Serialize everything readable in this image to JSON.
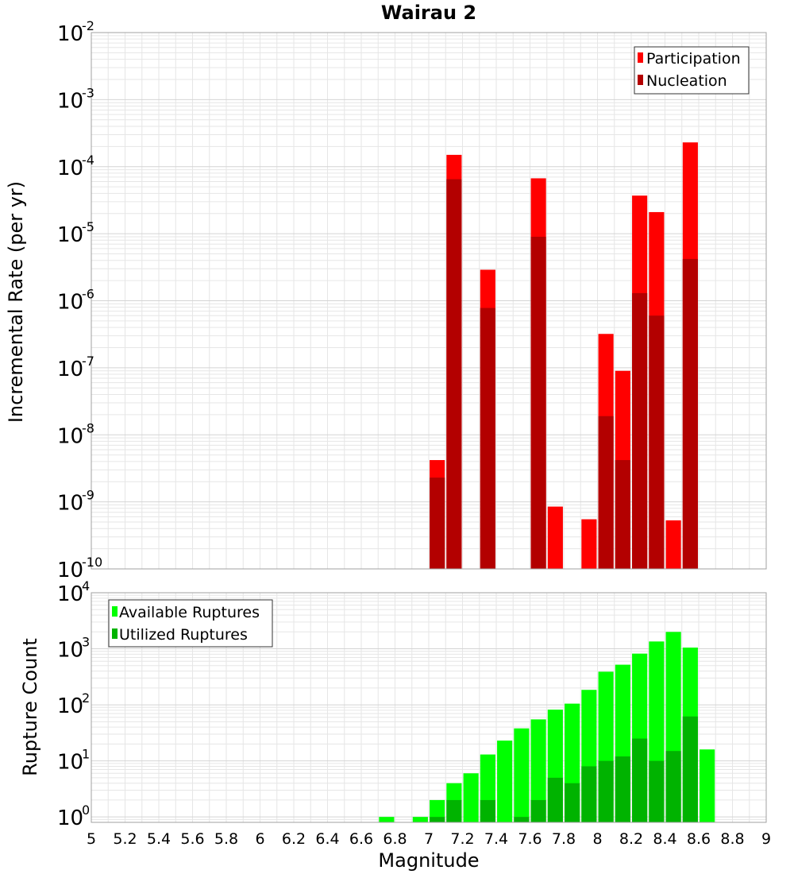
{
  "chart_data": [
    {
      "type": "bar",
      "title": "Wairau 2",
      "xlabel": "Magnitude",
      "ylabel": "Incremental Rate (per yr)",
      "xlim": [
        5,
        9
      ],
      "ylim": [
        1e-10,
        0.01
      ],
      "yscale": "log",
      "grid": true,
      "legend_position": "top-right",
      "bar_width": 0.09,
      "series": [
        {
          "name": "Participation",
          "color": "#ff0000",
          "x": [
            7.05,
            7.15,
            7.35,
            7.65,
            7.75,
            7.95,
            8.05,
            8.15,
            8.25,
            8.35,
            8.45,
            8.55
          ],
          "values": [
            4.2e-09,
            0.00015,
            2.9e-06,
            6.7e-05,
            8.5e-10,
            5.5e-10,
            3.2e-07,
            9e-08,
            3.7e-05,
            2.1e-05,
            5.3e-10,
            0.00023
          ]
        },
        {
          "name": "Nucleation",
          "color": "#b30000",
          "x": [
            7.05,
            7.15,
            7.35,
            7.65,
            8.05,
            8.15,
            8.25,
            8.35,
            8.55
          ],
          "values": [
            2.3e-09,
            6.5e-05,
            7.8e-07,
            9e-06,
            1.9e-08,
            4.2e-09,
            1.3e-06,
            6e-07,
            4.2e-06
          ]
        }
      ]
    },
    {
      "type": "bar",
      "xlabel": "Magnitude",
      "ylabel": "Rupture Count",
      "xlim": [
        5,
        9
      ],
      "ylim": [
        0.8,
        10000.0
      ],
      "yscale": "log",
      "grid": true,
      "legend_position": "top-left",
      "bar_width": 0.09,
      "series": [
        {
          "name": "Available Ruptures",
          "color": "#00ff00",
          "x": [
            6.75,
            6.95,
            7.05,
            7.15,
            7.25,
            7.35,
            7.45,
            7.55,
            7.65,
            7.75,
            7.85,
            7.95,
            8.05,
            8.15,
            8.25,
            8.35,
            8.45,
            8.55,
            8.65
          ],
          "values": [
            1,
            1,
            2,
            4,
            6,
            13,
            23,
            38,
            55,
            82,
            105,
            185,
            390,
            520,
            820,
            1350,
            2000,
            1050,
            16
          ]
        },
        {
          "name": "Utilized Ruptures",
          "color": "#00b300",
          "x": [
            7.05,
            7.15,
            7.35,
            7.55,
            7.65,
            7.75,
            7.85,
            7.95,
            8.05,
            8.15,
            8.25,
            8.35,
            8.45,
            8.55
          ],
          "values": [
            1,
            2,
            2,
            1,
            2,
            5,
            4,
            8,
            10,
            12,
            25,
            10,
            15,
            62
          ]
        }
      ]
    }
  ],
  "x_ticks": [
    "5",
    "5.2",
    "5.4",
    "5.6",
    "5.8",
    "6",
    "6.2",
    "6.4",
    "6.6",
    "6.8",
    "7",
    "7.2",
    "7.4",
    "7.6",
    "7.8",
    "8",
    "8.2",
    "8.4",
    "8.6",
    "8.8",
    "9"
  ],
  "top_y_ticks": [
    {
      "base": "10",
      "exp": "-2"
    },
    {
      "base": "10",
      "exp": "-3"
    },
    {
      "base": "10",
      "exp": "-4"
    },
    {
      "base": "10",
      "exp": "-5"
    },
    {
      "base": "10",
      "exp": "-6"
    },
    {
      "base": "10",
      "exp": "-7"
    },
    {
      "base": "10",
      "exp": "-8"
    },
    {
      "base": "10",
      "exp": "-9"
    },
    {
      "base": "10",
      "exp": "-10"
    }
  ],
  "bottom_y_ticks": [
    {
      "base": "10",
      "exp": "4"
    },
    {
      "base": "10",
      "exp": "3"
    },
    {
      "base": "10",
      "exp": "2"
    },
    {
      "base": "10",
      "exp": "1"
    },
    {
      "base": "10",
      "exp": "0"
    }
  ],
  "colors": {
    "grid": "#e6e6e6",
    "frame": "#a0a0a0",
    "legend_border": "#333333"
  }
}
